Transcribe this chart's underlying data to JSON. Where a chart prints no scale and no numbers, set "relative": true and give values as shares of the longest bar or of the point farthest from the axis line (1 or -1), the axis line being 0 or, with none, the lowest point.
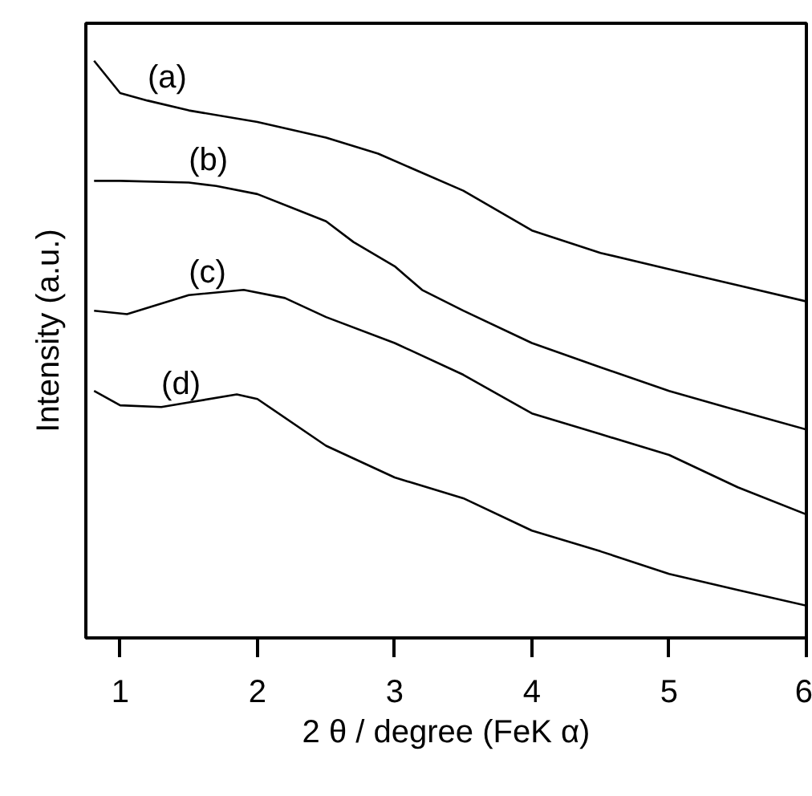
{
  "chart_data": {
    "type": "line",
    "relative": true,
    "xlabel": "2 θ / degree (FeK α)",
    "ylabel": "Intensity (a.u.)",
    "xlim": [
      0.75,
      6
    ],
    "xticks": [
      1,
      2,
      3,
      4,
      5,
      6
    ],
    "series": [
      {
        "name": "(a)",
        "color": "#000000",
        "x": [
          0.81,
          1.0,
          1.2,
          1.5,
          2.0,
          2.5,
          2.88,
          3.5,
          4.0,
          4.5,
          5.0,
          5.5,
          6.0
        ],
        "values": [
          1.0,
          0.944,
          0.931,
          0.914,
          0.894,
          0.867,
          0.839,
          0.775,
          0.706,
          0.667,
          0.639,
          0.611,
          0.583
        ]
      },
      {
        "name": "(b)",
        "color": "#000000",
        "x": [
          0.81,
          1.0,
          1.5,
          1.7,
          2.0,
          2.5,
          2.7,
          3.0,
          3.2,
          3.5,
          4.0,
          4.5,
          5.0,
          5.5,
          6.0
        ],
        "values": [
          0.792,
          0.792,
          0.789,
          0.783,
          0.769,
          0.722,
          0.686,
          0.644,
          0.603,
          0.567,
          0.511,
          0.469,
          0.428,
          0.394,
          0.361
        ]
      },
      {
        "name": "(c)",
        "color": "#000000",
        "x": [
          0.81,
          1.05,
          1.5,
          1.9,
          2.2,
          2.5,
          3.0,
          3.5,
          4.0,
          4.5,
          5.0,
          5.5,
          6.0
        ],
        "values": [
          0.567,
          0.561,
          0.594,
          0.603,
          0.589,
          0.556,
          0.511,
          0.456,
          0.389,
          0.353,
          0.317,
          0.261,
          0.214
        ]
      },
      {
        "name": "(d)",
        "color": "#000000",
        "x": [
          0.81,
          1.0,
          1.3,
          1.5,
          1.85,
          2.0,
          2.5,
          3.0,
          3.5,
          4.0,
          4.5,
          5.0,
          5.5,
          6.0
        ],
        "values": [
          0.428,
          0.403,
          0.4,
          0.408,
          0.422,
          0.414,
          0.333,
          0.278,
          0.242,
          0.186,
          0.15,
          0.111,
          0.083,
          0.056
        ]
      }
    ]
  }
}
